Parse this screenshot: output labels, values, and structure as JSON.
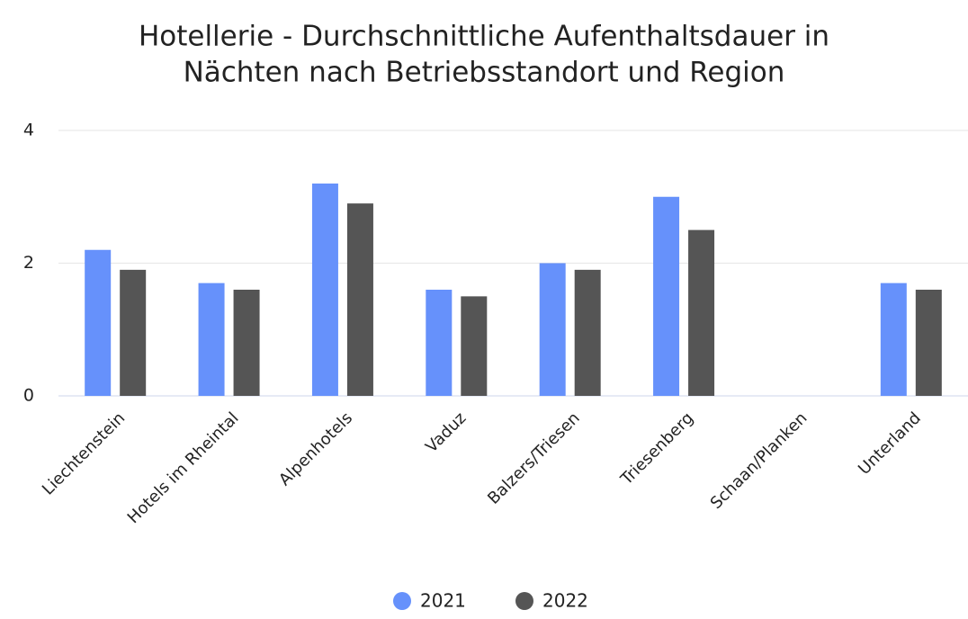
{
  "chart_data": {
    "type": "bar",
    "title": [
      "Hotellerie - Durchschnittliche Aufenthaltsdauer in",
      "Nächten nach Betriebsstandort und Region"
    ],
    "categories": [
      "Liechtenstein",
      "Hotels im Rheintal",
      "Alpenhotels",
      "Vaduz",
      "Balzers/Triesen",
      "Triesenberg",
      "Schaan/Planken",
      "Unterland"
    ],
    "series": [
      {
        "name": "2021",
        "color": "#6691fb",
        "values": [
          2.2,
          1.7,
          3.2,
          1.6,
          2.0,
          3.0,
          null,
          1.7
        ]
      },
      {
        "name": "2022",
        "color": "#555555",
        "values": [
          1.9,
          1.6,
          2.9,
          1.5,
          1.9,
          2.5,
          null,
          1.6
        ]
      }
    ],
    "ylim": [
      0,
      4
    ],
    "yticks": [
      0,
      2,
      4
    ],
    "grid": true
  }
}
